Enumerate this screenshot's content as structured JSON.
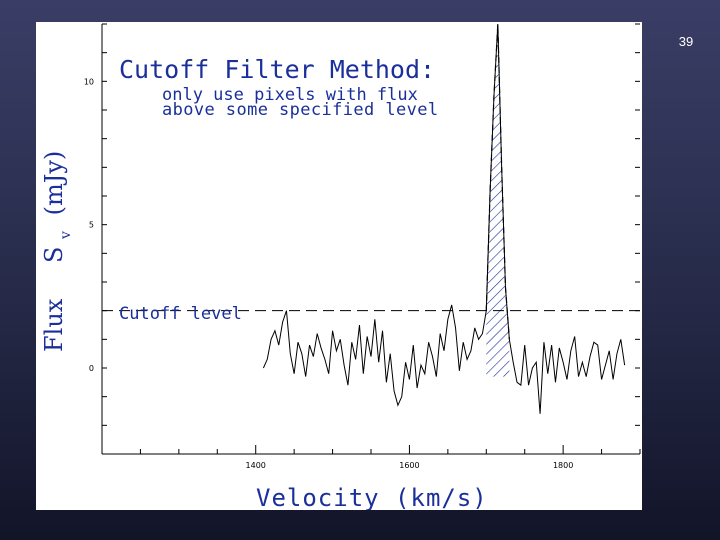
{
  "slide": {
    "number": "39"
  },
  "chart_data": {
    "type": "line",
    "title": "Cutoff Filter Method:",
    "subtitle_lines": [
      "only use pixels with flux",
      "above some specified level"
    ],
    "xlabel": "Velocity (km/s)",
    "ylabel_prefix": "Flux",
    "ylabel_symbol": "S",
    "ylabel_subscript": "v",
    "ylabel_unit": "(mJy)",
    "xlim": [
      1200,
      1900
    ],
    "ylim": [
      -3,
      12
    ],
    "x_ticks": [
      "1400",
      "1600",
      "1800"
    ],
    "y_ticks": [
      "10",
      "5",
      "0"
    ],
    "y_tick_values": [
      10,
      5,
      0
    ],
    "x_tick_values": [
      1400,
      1600,
      1800
    ],
    "cutoff": {
      "label": "Cutoff level",
      "value": 2
    },
    "series": [
      {
        "x": [
          1410,
          1415,
          1420,
          1425,
          1430,
          1435,
          1440,
          1445,
          1450,
          1455,
          1460,
          1465,
          1470,
          1475,
          1480,
          1485,
          1490,
          1495,
          1500,
          1505,
          1510,
          1515,
          1520,
          1525,
          1530,
          1535,
          1540,
          1545,
          1550,
          1555,
          1560,
          1565,
          1570,
          1575,
          1580,
          1585,
          1590,
          1595,
          1600,
          1605,
          1610,
          1615,
          1620,
          1625,
          1630,
          1635,
          1640,
          1645,
          1650,
          1655,
          1660,
          1665,
          1670,
          1675,
          1680,
          1685,
          1690,
          1695,
          1700,
          1705,
          1710,
          1715,
          1720,
          1725,
          1730,
          1735,
          1740,
          1745,
          1750,
          1755,
          1760,
          1765,
          1770,
          1775,
          1780,
          1785,
          1790,
          1795,
          1800,
          1805,
          1810,
          1815,
          1820,
          1825,
          1830,
          1835,
          1840,
          1845,
          1850,
          1855,
          1860,
          1865,
          1870,
          1875,
          1880
        ],
        "y": [
          0,
          0.3,
          1,
          1.3,
          0.8,
          1.6,
          2,
          0.5,
          -0.2,
          0.9,
          0.5,
          -0.3,
          0.8,
          0.4,
          1.2,
          0.7,
          0.3,
          -0.2,
          1.3,
          0.6,
          1,
          0.1,
          -0.6,
          0.9,
          0.3,
          1.5,
          -0.2,
          1.1,
          0.4,
          1.7,
          0.2,
          1.3,
          -0.5,
          0.5,
          -0.8,
          -1.3,
          -1,
          0.2,
          -0.4,
          0.8,
          -0.7,
          0.1,
          -0.2,
          0.9,
          0.4,
          -0.3,
          1.2,
          0.6,
          1.7,
          2.2,
          1.4,
          -0.1,
          0.9,
          0.3,
          0.6,
          1.4,
          1.0,
          1.2,
          2.0,
          6.2,
          9.5,
          12,
          7.0,
          2.8,
          1.0,
          0.2,
          -0.5,
          -0.6,
          0.8,
          -0.6,
          0,
          0.2,
          -1.6,
          0.9,
          -0.2,
          0.8,
          -0.5,
          0.7,
          0.2,
          -0.4,
          0.6,
          1.1,
          -0.3,
          0.2,
          -0.3,
          0.4,
          0.9,
          0.8,
          -0.4,
          0.1,
          0.6,
          -0.4,
          0.5,
          1.0,
          0.1
        ]
      }
    ],
    "grid": false,
    "colors": {
      "annotation": "#1a2f9a",
      "hatch": "#1a2f9a",
      "line": "#000000"
    }
  }
}
